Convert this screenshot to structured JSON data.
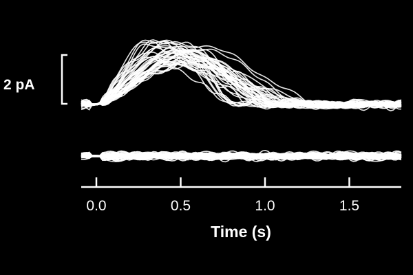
{
  "chart_data": {
    "type": "line",
    "title": "",
    "xlabel": "Time (s)",
    "ylabel": "",
    "xlim": [
      -0.1,
      1.8
    ],
    "x_ticks": [
      0.0,
      0.5,
      1.0,
      1.5
    ],
    "x_tick_labels": [
      "0.0",
      "0.5",
      "1.0",
      "1.5"
    ],
    "scale_bar": {
      "value": 2,
      "unit": "pA",
      "label": "2 pA"
    },
    "background_color": "#000000",
    "trace_color": "#ffffff",
    "grid": false,
    "panels": [
      {
        "name": "",
        "trace_count": 40,
        "baseline_pA": 0,
        "onset_s": 0.0,
        "rise_peak_s": [
          0.3,
          0.6
        ],
        "peak_amplitude_pA": [
          1.5,
          2.5
        ],
        "decay_end_s": [
          0.8,
          1.4
        ],
        "noise_pA": 0.15
      },
      {
        "name": "",
        "trace_count": 40,
        "baseline_pA": 0,
        "onset_s": 0.0,
        "noise_pA": 0.15
      }
    ]
  }
}
